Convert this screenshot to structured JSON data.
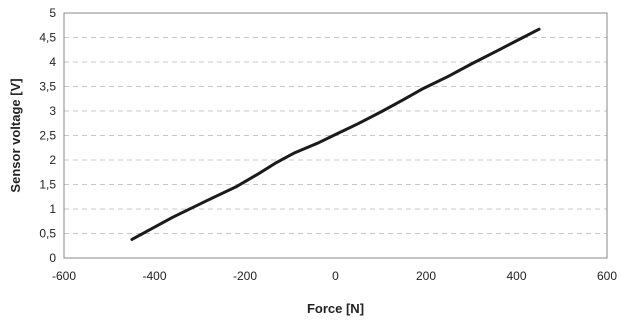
{
  "chart_data": {
    "type": "line",
    "title": "",
    "xlabel": "Force [N]",
    "ylabel": "Sensor voltage [V]",
    "xlim": [
      -600,
      600
    ],
    "ylim": [
      0,
      5
    ],
    "x_ticks": [
      -600,
      -400,
      -200,
      0,
      200,
      400,
      600
    ],
    "x_tick_labels": [
      "-600",
      "-400",
      "-200",
      "0",
      "200",
      "400",
      "600"
    ],
    "y_ticks": [
      0,
      0.5,
      1,
      1.5,
      2,
      2.5,
      3,
      3.5,
      4,
      4.5,
      5
    ],
    "y_tick_labels": [
      "0",
      "0,5",
      "1",
      "1,5",
      "2",
      "2,5",
      "3",
      "3,5",
      "4",
      "4,5",
      "5"
    ],
    "grid": true,
    "grid_style": "dashed horizontal",
    "legend": "none",
    "colors": {
      "line": "#1a1a1a",
      "grid": "#c8c8c8",
      "frame": "#888888",
      "text": "#222222"
    },
    "series": [
      {
        "x": [
          -450,
          -360,
          -280,
          -220,
          -170,
          -130,
          -90,
          -40,
          0,
          50,
          100,
          150,
          190,
          250,
          300,
          360,
          410,
          450
        ],
        "y": [
          0.38,
          0.83,
          1.19,
          1.45,
          1.72,
          1.95,
          2.15,
          2.34,
          2.52,
          2.74,
          2.98,
          3.23,
          3.44,
          3.71,
          3.96,
          4.24,
          4.48,
          4.67
        ]
      }
    ]
  }
}
